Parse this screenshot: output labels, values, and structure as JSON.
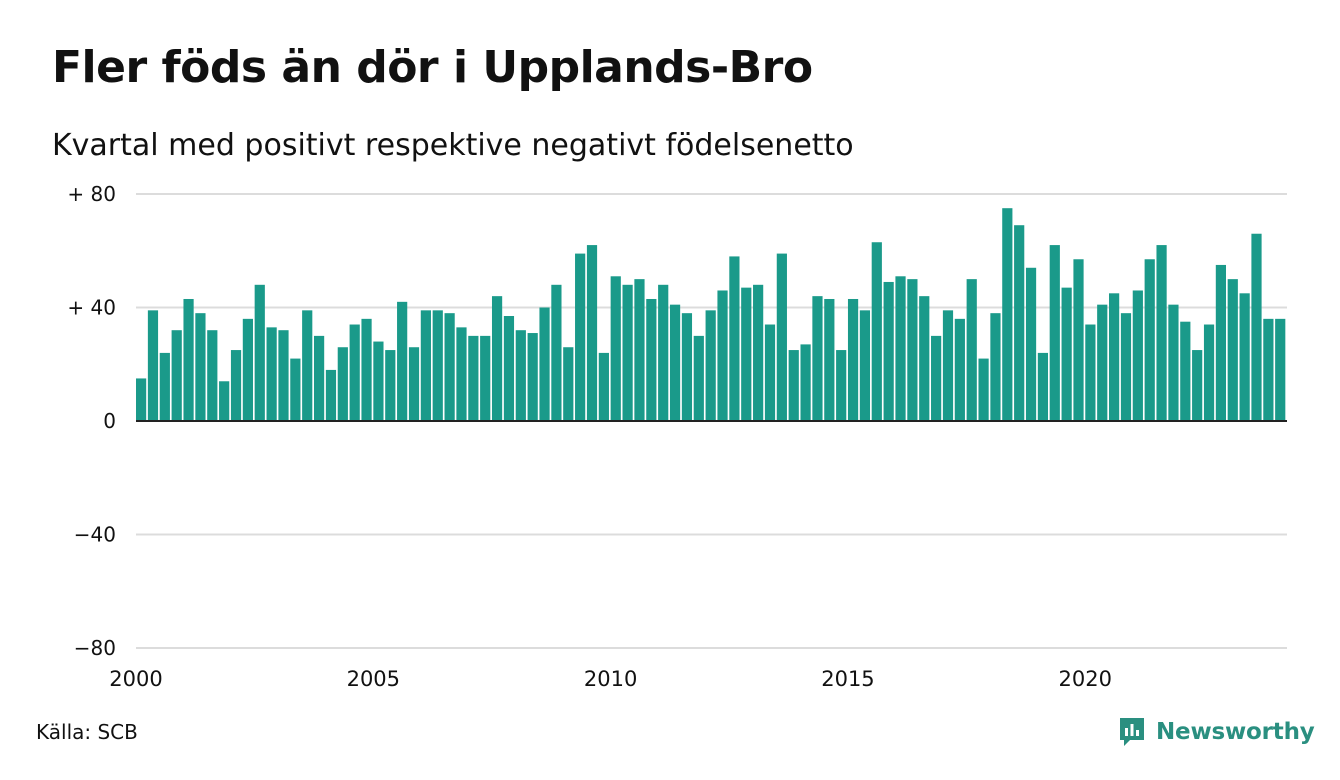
{
  "title": "Fler föds än dör i Upplands-Bro",
  "subtitle": "Kvartal med positivt respektive negativt födelsenetto",
  "source": "Källa: SCB",
  "brand": {
    "name": "Newsworthy",
    "icon": "newsworthy-logo-icon",
    "color": "#2a8f80"
  },
  "colors": {
    "positive_bar": "#1a9a8a",
    "grid": "#dcdcdc",
    "zero_line": "#222222"
  },
  "chart_data": {
    "type": "bar",
    "title": "Fler föds än dör i Upplands-Bro",
    "subtitle": "Kvartal med positivt respektive negativt födelsenetto",
    "xlabel": "",
    "ylabel": "",
    "x_start": 2000,
    "periods_per_year": 4,
    "xticks": [
      "2000",
      "2005",
      "2010",
      "2015",
      "2020"
    ],
    "yticks": [
      {
        "value": 80,
        "label": "+ 80"
      },
      {
        "value": 40,
        "label": "+ 40"
      },
      {
        "value": 0,
        "label": "0"
      },
      {
        "value": -40,
        "label": "−40"
      },
      {
        "value": -80,
        "label": "−80"
      }
    ],
    "ylim": [
      -80,
      80
    ],
    "grid": true,
    "legend": "none",
    "values": [
      15,
      39,
      24,
      32,
      43,
      38,
      32,
      14,
      25,
      36,
      48,
      33,
      32,
      22,
      39,
      30,
      18,
      26,
      34,
      36,
      28,
      25,
      42,
      26,
      39,
      39,
      38,
      33,
      30,
      30,
      44,
      37,
      32,
      31,
      40,
      48,
      26,
      59,
      62,
      24,
      51,
      48,
      50,
      43,
      48,
      41,
      38,
      30,
      39,
      46,
      58,
      47,
      48,
      34,
      59,
      25,
      27,
      44,
      43,
      25,
      43,
      39,
      63,
      49,
      51,
      50,
      44,
      30,
      39,
      36,
      50,
      22,
      38,
      75,
      69,
      54,
      24,
      62,
      47,
      57,
      34,
      41,
      45,
      38,
      46,
      57,
      62,
      41,
      35,
      25,
      34,
      55,
      50,
      45,
      66,
      36,
      36
    ]
  }
}
